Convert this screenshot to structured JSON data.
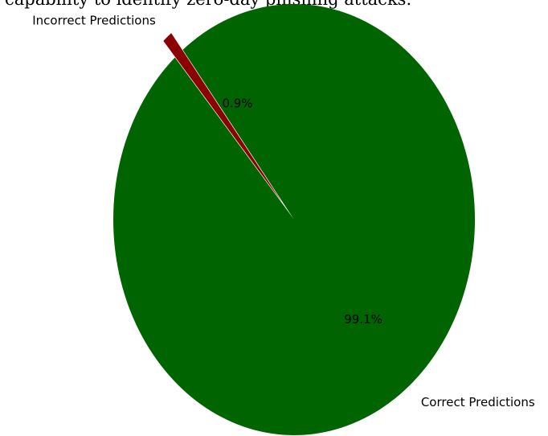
{
  "caption": "capability to identify zero-day phishing attacks.",
  "chart_data": {
    "type": "pie",
    "slices": [
      {
        "label": "Correct Predictions",
        "value": 99.1,
        "pct_label": "99.1%",
        "color": "#006400"
      },
      {
        "label": "Incorrect Predictions",
        "value": 0.9,
        "pct_label": "0.9%",
        "color": "#8b0000"
      }
    ],
    "exploded": "Incorrect Predictions"
  }
}
